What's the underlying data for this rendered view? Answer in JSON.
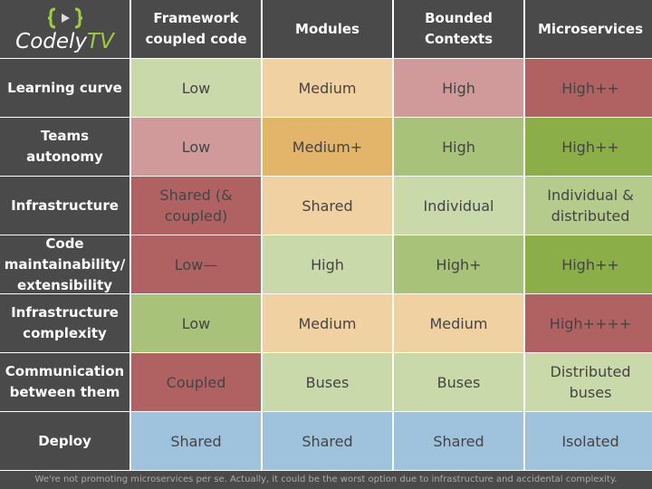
{
  "logo": {
    "name": "Codely",
    "suffix": "TV"
  },
  "table": {
    "headers": [
      "Framework coupled code",
      "Modules",
      "Bounded Contexts",
      "Microservices"
    ],
    "rows": [
      {
        "label": "Learning curve",
        "cells": [
          {
            "text": "Low",
            "color": "#c9d9a9"
          },
          {
            "text": "Medium",
            "color": "#f0d1a1"
          },
          {
            "text": "High",
            "color": "#d09a9a"
          },
          {
            "text": "High++",
            "color": "#b06262"
          }
        ]
      },
      {
        "label": "Teams autonomy",
        "cells": [
          {
            "text": "Low",
            "color": "#d09a9a"
          },
          {
            "text": "Medium+",
            "color": "#e3b56b"
          },
          {
            "text": "High",
            "color": "#a9c27a"
          },
          {
            "text": "High++",
            "color": "#8bae49"
          }
        ]
      },
      {
        "label": "Infrastructure",
        "cells": [
          {
            "text": "Shared (& coupled)",
            "color": "#b06262"
          },
          {
            "text": "Shared",
            "color": "#f0d1a1"
          },
          {
            "text": "Individual",
            "color": "#c9d9a9"
          },
          {
            "text": "Individual & distributed",
            "color": "#b5cb8c"
          }
        ]
      },
      {
        "label": "Code maintainability/ extensibility",
        "cells": [
          {
            "text": "Low—",
            "color": "#b06262"
          },
          {
            "text": "High",
            "color": "#c9d9a9"
          },
          {
            "text": "High+",
            "color": "#a9c27a"
          },
          {
            "text": "High++",
            "color": "#8bae49"
          }
        ]
      },
      {
        "label": "Infrastructure complexity",
        "cells": [
          {
            "text": "Low",
            "color": "#a9c27a"
          },
          {
            "text": "Medium",
            "color": "#f0d1a1"
          },
          {
            "text": "Medium",
            "color": "#f0d1a1"
          },
          {
            "text": "High++++",
            "color": "#b06262"
          }
        ]
      },
      {
        "label": "Communication between them",
        "cells": [
          {
            "text": "Coupled",
            "color": "#b06262"
          },
          {
            "text": "Buses",
            "color": "#c9d9a9"
          },
          {
            "text": "Buses",
            "color": "#c9d9a9"
          },
          {
            "text": "Distributed buses",
            "color": "#c9d9a9"
          }
        ]
      },
      {
        "label": "Deploy",
        "cells": [
          {
            "text": "Shared",
            "color": "#9fc3dc"
          },
          {
            "text": "Shared",
            "color": "#9fc3dc"
          },
          {
            "text": "Shared",
            "color": "#9fc3dc"
          },
          {
            "text": "Isolated",
            "color": "#9fc3dc"
          }
        ]
      }
    ]
  },
  "footer": "We're not promoting microservices per se. Actually, it could be the worst option due to infrastructure and accidental complexity."
}
